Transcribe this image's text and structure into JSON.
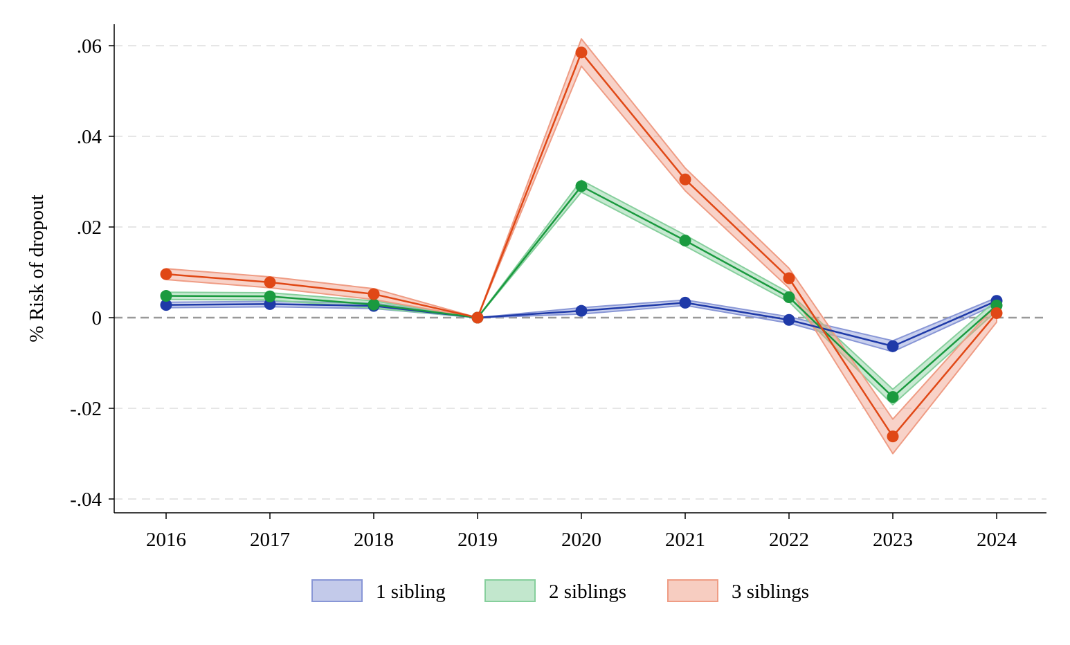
{
  "chart_data": {
    "type": "line",
    "title": "",
    "xlabel": "",
    "ylabel": "% Risk of dropout",
    "categories": [
      "2016",
      "2017",
      "2018",
      "2019",
      "2020",
      "2021",
      "2022",
      "2023",
      "2024"
    ],
    "ylim": [
      -0.04,
      0.06
    ],
    "yticks": [
      {
        "value": -0.04,
        "label": "-.04"
      },
      {
        "value": -0.02,
        "label": "-.02"
      },
      {
        "value": 0,
        "label": "0"
      },
      {
        "value": 0.02,
        "label": ".02"
      },
      {
        "value": 0.04,
        "label": ".04"
      },
      {
        "value": 0.06,
        "label": ".06"
      }
    ],
    "grid": "horizontal dashed",
    "reference_line": 0,
    "legend_position": "bottom",
    "series": [
      {
        "name": "1 sibling",
        "color": "#1f3aa8",
        "band_color": "#8896d6",
        "values": [
          0.0028,
          0.003,
          0.0026,
          0.0,
          0.0015,
          0.0033,
          -0.0005,
          -0.0063,
          0.0037
        ],
        "ci_lower": [
          0.0022,
          0.0024,
          0.002,
          0.0,
          0.0008,
          0.0027,
          -0.0012,
          -0.0075,
          0.003
        ],
        "ci_upper": [
          0.0034,
          0.0036,
          0.0032,
          0.0,
          0.0022,
          0.0039,
          0.0002,
          -0.0051,
          0.0044
        ]
      },
      {
        "name": "2 siblings",
        "color": "#1a9a3f",
        "band_color": "#86cf9c",
        "values": [
          0.0048,
          0.0047,
          0.0029,
          0.0,
          0.029,
          0.017,
          0.0045,
          -0.0175,
          0.0027
        ],
        "ci_lower": [
          0.004,
          0.0039,
          0.0021,
          0.0,
          0.0277,
          0.0158,
          0.0035,
          -0.0192,
          0.0015
        ],
        "ci_upper": [
          0.0056,
          0.0055,
          0.0037,
          0.0,
          0.0303,
          0.0182,
          0.0055,
          -0.0158,
          0.0039
        ]
      },
      {
        "name": "3 siblings",
        "color": "#e04816",
        "band_color": "#ef9c84",
        "values": [
          0.0096,
          0.0078,
          0.0052,
          0.0,
          0.0585,
          0.0305,
          0.0087,
          -0.0262,
          0.001
        ],
        "ci_lower": [
          0.0084,
          0.0066,
          0.004,
          0.0,
          0.0555,
          0.028,
          0.0065,
          -0.03,
          -0.001
        ],
        "ci_upper": [
          0.0108,
          0.009,
          0.0064,
          0.0,
          0.0615,
          0.033,
          0.0109,
          -0.0224,
          0.003
        ]
      }
    ]
  }
}
